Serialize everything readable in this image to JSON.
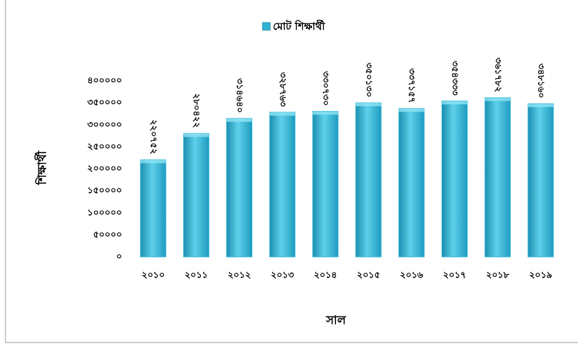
{
  "chart_data": {
    "type": "bar",
    "x_label": "সাল",
    "y_label": "শিক্ষার্থী",
    "categories": [
      "২০১০",
      "২০১১",
      "২০১২",
      "২০১৩",
      "২০১৪",
      "২০১৫",
      "২০১৬",
      "২০১৭",
      "২০১৮",
      "২০১৯"
    ],
    "series": [
      {
        "name": "মোট শিক্ষার্থী",
        "color": "#2fb5d1",
        "values": [
          220752,
          280422,
          314640,
          328763,
          330730,
          350130,
          337157,
          354333,
          361782,
          348160
        ],
        "value_labels": [
          "২২০৭৫২",
          "২৮০৪২২",
          "৩১৪৬৪০",
          "৩২৮৭৬৩",
          "৩৩০৭৩০",
          "৩৫০১৩০",
          "৩৩৭১৫৭",
          "৩৫৪৩৩৩",
          "৩৬১৭৮২",
          "৩৪৮১৬০"
        ]
      }
    ],
    "ylim": [
      0,
      400000
    ],
    "yticks": [
      {
        "value": 0,
        "label": "০"
      },
      {
        "value": 50000,
        "label": "৫০০০০"
      },
      {
        "value": 100000,
        "label": "১০০০০০"
      },
      {
        "value": 150000,
        "label": "১৫০০০০"
      },
      {
        "value": 200000,
        "label": "২০০০০০"
      },
      {
        "value": 250000,
        "label": "২৫০০০০"
      },
      {
        "value": 300000,
        "label": "৩০০০০০"
      },
      {
        "value": 350000,
        "label": "৩৫০০০০"
      },
      {
        "value": 400000,
        "label": "৪০০০০০"
      }
    ],
    "legend": "top",
    "grid": false
  }
}
